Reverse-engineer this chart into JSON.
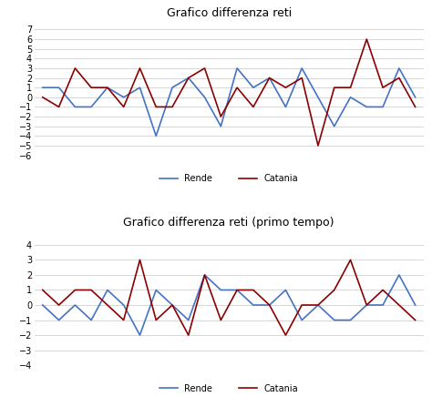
{
  "title1": "Grafico differenza reti",
  "title2": "Grafico differenza reti (primo tempo)",
  "rende1": [
    1,
    1,
    -1,
    -1,
    1,
    0,
    1,
    -4,
    1,
    2,
    0,
    -3,
    3,
    1,
    2,
    -1,
    3,
    0,
    -3,
    0,
    -1,
    -1,
    3,
    0
  ],
  "catania1": [
    0,
    -1,
    3,
    1,
    1,
    -1,
    3,
    -1,
    -1,
    2,
    3,
    -2,
    1,
    -1,
    2,
    1,
    2,
    -5,
    1,
    1,
    6,
    1,
    2,
    -1
  ],
  "rende2": [
    0,
    -1,
    0,
    -1,
    1,
    0,
    -2,
    1,
    0,
    -1,
    2,
    1,
    1,
    0,
    0,
    1,
    -1,
    0,
    -1,
    -1,
    0,
    0,
    2,
    0
  ],
  "catania2": [
    1,
    0,
    1,
    1,
    0,
    -1,
    3,
    -1,
    0,
    -2,
    2,
    -1,
    1,
    1,
    0,
    -2,
    0,
    0,
    1,
    3,
    0,
    1,
    0,
    -1
  ],
  "color_rende": "#4472C4",
  "color_catania": "#8B0000",
  "ylim1": [
    -6,
    8
  ],
  "yticks1": [
    -6,
    -5,
    -4,
    -3,
    -2,
    -1,
    0,
    1,
    2,
    3,
    4,
    5,
    6,
    7
  ],
  "ylim2": [
    -4,
    5
  ],
  "yticks2": [
    -4,
    -3,
    -2,
    -1,
    0,
    1,
    2,
    3,
    4
  ],
  "legend_rende": "Rende",
  "legend_catania": "Catania",
  "bg_color": "#ffffff",
  "grid_color": "#d0d0d0",
  "title_fontsize": 9,
  "tick_fontsize": 7,
  "legend_fontsize": 7,
  "linewidth": 1.2
}
